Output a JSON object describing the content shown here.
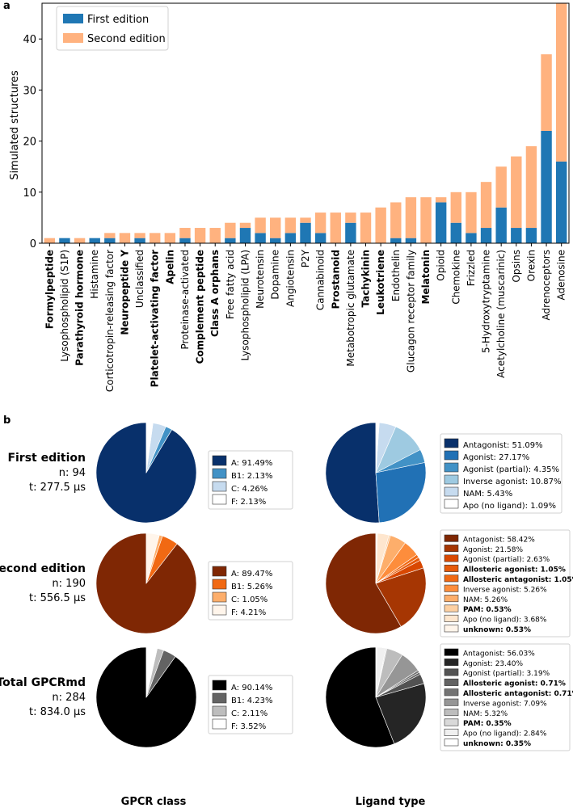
{
  "panel_a_label": "a",
  "panel_b_label": "b",
  "colors": {
    "first": "#1f77b4",
    "second": "#ffb27f",
    "blues": [
      "#08306b",
      "#2171b5",
      "#4292c6",
      "#9ecae1",
      "#c6dbef",
      "#ffffff"
    ],
    "oranges": [
      "#7f2704",
      "#a63603",
      "#d94801",
      "#f16913",
      "#fd8d3c",
      "#fdae6b",
      "#fdd0a2",
      "#fee6ce",
      "#fff5eb"
    ],
    "greys": [
      "#000000",
      "#252525",
      "#525252",
      "#636363",
      "#737373",
      "#969696",
      "#bdbdbd",
      "#d9d9d9",
      "#f0f0f0",
      "#ffffff"
    ]
  },
  "chart_data": [
    {
      "type": "bar",
      "stacked": true,
      "title": "",
      "xlabel": "",
      "ylabel": "Simulated structures",
      "ylim": [
        0,
        47
      ],
      "yticks": [
        0,
        10,
        20,
        30,
        40
      ],
      "legend": "top-left",
      "categories": [
        "Formylpeptide",
        "Lysophospholipid (S1P)",
        "Parathyroid hormone",
        "Histamine",
        "Corticotropin-releasing factor",
        "Neuropeptide Y",
        "Unclassified",
        "Platelet-activating factor",
        "Apelin",
        "Proteinase-activated",
        "Complement peptide",
        "Class A orphans",
        "Free fatty acid",
        "Lysophospholipid (LPA)",
        "Neurotensin",
        "Dopamine",
        "Angiotensin",
        "P2Y",
        "Cannabinoid",
        "Prostanoid",
        "Metabotropic glutamate",
        "Tachykinin",
        "Leukotriene",
        "Endothelin",
        "Glucagon receptor family",
        "Melatonin",
        "Opioid",
        "Chemokine",
        "Frizzled",
        "5-Hydroxytryptamine",
        "Acetylcholine (muscarinic)",
        "Opsins",
        "Orexin",
        "Adrenoceptors",
        "Adenosine"
      ],
      "bold_categories": [
        "Formylpeptide",
        "Parathyroid hormone",
        "Neuropeptide Y",
        "Platelet-activating factor",
        "Apelin",
        "Complement peptide",
        "Class A orphans",
        "Prostanoid",
        "Tachykinin",
        "Leukotriene",
        "Melatonin"
      ],
      "series": [
        {
          "name": "First edition",
          "values": [
            0,
            1,
            0,
            1,
            1,
            0,
            1,
            0,
            0,
            1,
            0,
            0,
            1,
            3,
            2,
            1,
            2,
            4,
            2,
            0,
            4,
            0,
            0,
            1,
            1,
            0,
            8,
            4,
            2,
            3,
            7,
            3,
            3,
            22,
            16
          ]
        },
        {
          "name": "Second edition",
          "values": [
            1,
            0,
            1,
            0,
            1,
            2,
            1,
            2,
            2,
            2,
            3,
            3,
            3,
            1,
            3,
            4,
            3,
            1,
            4,
            6,
            2,
            6,
            7,
            7,
            8,
            9,
            1,
            6,
            8,
            9,
            8,
            14,
            16,
            15,
            31
          ]
        }
      ]
    },
    {
      "type": "pie",
      "panel": "b",
      "column_titles": [
        "GPCR class",
        "Ligand type"
      ],
      "rows": [
        {
          "title": "First edition",
          "n": "n: 94",
          "t": "t: 277.5 μs",
          "palette": "blues",
          "class_pie": {
            "slices": [
              {
                "label": "A: 91.49%",
                "value": 91.49,
                "color": "#08306b",
                "bold": false
              },
              {
                "label": "B1: 2.13%",
                "value": 2.13,
                "color": "#4292c6",
                "bold": false
              },
              {
                "label": "C: 4.26%",
                "value": 4.26,
                "color": "#c6dbef",
                "bold": false
              },
              {
                "label": "F: 2.13%",
                "value": 2.13,
                "color": "#ffffff",
                "bold": false
              }
            ]
          },
          "ligand_pie": {
            "slices": [
              {
                "label": "Antagonist: 51.09%",
                "value": 51.09,
                "color": "#08306b",
                "bold": false
              },
              {
                "label": "Agonist: 27.17%",
                "value": 27.17,
                "color": "#2171b5",
                "bold": false
              },
              {
                "label": "Agonist (partial): 4.35%",
                "value": 4.35,
                "color": "#4292c6",
                "bold": false
              },
              {
                "label": "Inverse agonist: 10.87%",
                "value": 10.87,
                "color": "#9ecae1",
                "bold": false
              },
              {
                "label": "NAM: 5.43%",
                "value": 5.43,
                "color": "#c6dbef",
                "bold": false
              },
              {
                "label": "Apo (no ligand): 1.09%",
                "value": 1.09,
                "color": "#ffffff",
                "bold": false
              }
            ]
          }
        },
        {
          "title": "Second edition",
          "n": "n: 190",
          "t": "t: 556.5 μs",
          "palette": "oranges",
          "class_pie": {
            "slices": [
              {
                "label": "A: 89.47%",
                "value": 89.47,
                "color": "#7f2704",
                "bold": false
              },
              {
                "label": "B1: 5.26%",
                "value": 5.26,
                "color": "#f16913",
                "bold": false
              },
              {
                "label": "C: 1.05%",
                "value": 1.05,
                "color": "#fdae6b",
                "bold": false
              },
              {
                "label": "F: 4.21%",
                "value": 4.21,
                "color": "#fff5eb",
                "bold": false
              }
            ]
          },
          "ligand_pie": {
            "slices": [
              {
                "label": "Antagonist: 58.42%",
                "value": 58.42,
                "color": "#7f2704",
                "bold": false
              },
              {
                "label": "Agonist: 21.58%",
                "value": 21.58,
                "color": "#a63603",
                "bold": false
              },
              {
                "label": "Agonist (partial): 2.63%",
                "value": 2.63,
                "color": "#d94801",
                "bold": false
              },
              {
                "label": "Allosteric agonist: 1.05%",
                "value": 1.05,
                "color": "#e65a0b",
                "bold": true
              },
              {
                "label": "Allosteric antagonist: 1.05%",
                "value": 1.05,
                "color": "#f16913",
                "bold": true
              },
              {
                "label": "Inverse agonist: 5.26%",
                "value": 5.26,
                "color": "#fd8d3c",
                "bold": false
              },
              {
                "label": "NAM: 5.26%",
                "value": 5.26,
                "color": "#fdae6b",
                "bold": false
              },
              {
                "label": "PAM: 0.53%",
                "value": 0.53,
                "color": "#fdd0a2",
                "bold": true
              },
              {
                "label": "Apo (no ligand): 3.68%",
                "value": 3.68,
                "color": "#fee6ce",
                "bold": false
              },
              {
                "label": "unknown: 0.53%",
                "value": 0.53,
                "color": "#fff5eb",
                "bold": true
              }
            ]
          }
        },
        {
          "title": "Total GPCRmd",
          "n": "n: 284",
          "t": "t: 834.0 μs",
          "palette": "greys",
          "class_pie": {
            "slices": [
              {
                "label": "A: 90.14%",
                "value": 90.14,
                "color": "#000000",
                "bold": false
              },
              {
                "label": "B1: 4.23%",
                "value": 4.23,
                "color": "#636363",
                "bold": false
              },
              {
                "label": "C: 2.11%",
                "value": 2.11,
                "color": "#bdbdbd",
                "bold": false
              },
              {
                "label": "F: 3.52%",
                "value": 3.52,
                "color": "#ffffff",
                "bold": false
              }
            ]
          },
          "ligand_pie": {
            "slices": [
              {
                "label": "Antagonist: 56.03%",
                "value": 56.03,
                "color": "#000000",
                "bold": false
              },
              {
                "label": "Agonist: 23.40%",
                "value": 23.4,
                "color": "#252525",
                "bold": false
              },
              {
                "label": "Agonist (partial): 3.19%",
                "value": 3.19,
                "color": "#525252",
                "bold": false
              },
              {
                "label": "Allosteric agonist: 0.71%",
                "value": 0.71,
                "color": "#636363",
                "bold": true
              },
              {
                "label": "Allosteric antagonist: 0.71%",
                "value": 0.71,
                "color": "#737373",
                "bold": true
              },
              {
                "label": "Inverse agonist: 7.09%",
                "value": 7.09,
                "color": "#969696",
                "bold": false
              },
              {
                "label": "NAM: 5.32%",
                "value": 5.32,
                "color": "#bdbdbd",
                "bold": false
              },
              {
                "label": "PAM: 0.35%",
                "value": 0.35,
                "color": "#d9d9d9",
                "bold": true
              },
              {
                "label": "Apo (no ligand): 2.84%",
                "value": 2.84,
                "color": "#f0f0f0",
                "bold": false
              },
              {
                "label": "unknown: 0.35%",
                "value": 0.35,
                "color": "#ffffff",
                "bold": true
              }
            ]
          }
        }
      ]
    }
  ]
}
